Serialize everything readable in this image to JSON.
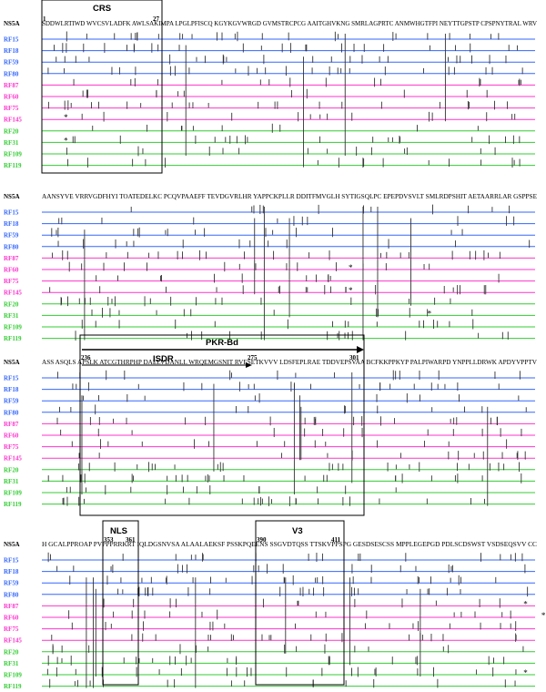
{
  "reference_label": "NS5A",
  "rows": [
    {
      "label": "RF15",
      "color": "#3366ff"
    },
    {
      "label": "RF18",
      "color": "#3366ff"
    },
    {
      "label": "RF59",
      "color": "#3366ff"
    },
    {
      "label": "RF80",
      "color": "#3366ff"
    },
    {
      "label": "RF87",
      "color": "#ff33cc"
    },
    {
      "label": "RF60",
      "color": "#ff33cc"
    },
    {
      "label": "RF75",
      "color": "#ff33cc"
    },
    {
      "label": "RF145",
      "color": "#ff33cc"
    },
    {
      "label": "RF20",
      "color": "#33cc33"
    },
    {
      "label": "RF31",
      "color": "#33cc33"
    },
    {
      "label": "RF109",
      "color": "#33cc33"
    },
    {
      "label": "RF119",
      "color": "#33cc33"
    }
  ],
  "blocks": [
    {
      "sequence": "SDDWLRTIWD WVCSVLADFK AWLSAKIMPA LPGLPFISCQ KGYKGVWRGD GVMSTRCPCG AAITGHVKNG SMRLAGPRTC ANMWHGTFPI NEYTTGPSTP CPSPNYTRAL WRV",
      "regions": [
        {
          "label": "CRS",
          "start": "1",
          "end": "27"
        }
      ],
      "stars": [
        {
          "row": 7,
          "residue": 5
        },
        {
          "row": 9,
          "residue": 5
        }
      ]
    },
    {
      "sequence": "AANSYVE VRRVGDFHYI TOATEDELKC PCQVPAAEFF TEVDGVRLHR YAPPCKPLLR DDITFMVGLH SYTIGSQLPC EPEPDVSVLT SMLRDPSHIT AETAARRLAR GSPPSE",
      "regions": [],
      "stars": [
        {
          "row": 5,
          "residue": 70
        },
        {
          "row": 7,
          "residue": 70
        },
        {
          "row": 9,
          "residue": 88
        }
      ]
    },
    {
      "sequence": "ASS ASQLS APSLK ATCGTHRPHP DAELVDANLL WRQEMGSNIT RVESETKVVV LDSFEPLRAE TDDVEPSVAA BCFKKPPKYP PALPIWARPD YNPPLLDRWK APDYVPPTV",
      "regions": [
        {
          "label": "PKR-Bd",
          "start": "236",
          "end": "301"
        },
        {
          "label": "ISDR",
          "start": "236",
          "end": "275"
        }
      ],
      "stars": []
    },
    {
      "sequence": "H GCALPPROAP PVPPPRRKRT IQLDGSNVSA ALAALAEKSF PSSKPQEENS SSGVDTQSS TTSKVPPSPG GESDSESCSS MPPLEGEPGD PDLSCDSWST VSDSEQSVV CC",
      "regions": [
        {
          "label": "NLS",
          "start": "353",
          "end": "361"
        },
        {
          "label": "V3",
          "start": "390",
          "end": "411"
        }
      ],
      "stars": [
        {
          "row": 4,
          "residue": 108
        },
        {
          "row": 5,
          "residue": 112
        },
        {
          "row": 10,
          "residue": 108
        }
      ]
    }
  ]
}
